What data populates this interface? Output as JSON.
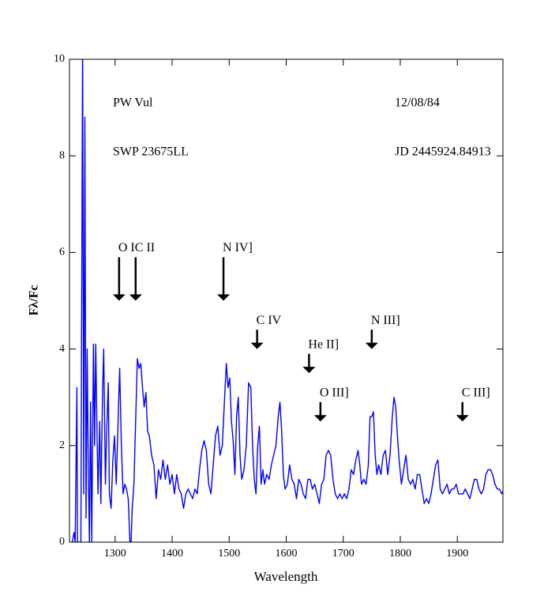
{
  "chart_data": {
    "type": "line",
    "xlabel": "Wavelength",
    "ylabel": "Fλ/Fc",
    "xlim": [
      1220,
      1980
    ],
    "ylim": [
      0,
      10
    ],
    "xticks": [
      1300,
      1400,
      1500,
      1600,
      1700,
      1800,
      1900
    ],
    "yticks": [
      0,
      2,
      4,
      6,
      8,
      10
    ],
    "texts": [
      "PW Vul",
      "SWP 23675LL",
      "12/08/84",
      "JD 2445924.84913"
    ],
    "annotations": [
      {
        "text": "O I",
        "xy": [
          1307,
          5.0
        ],
        "xytext": [
          1307,
          5.9
        ]
      },
      {
        "text": "C II",
        "xy": [
          1336,
          5.0
        ],
        "xytext": [
          1336,
          5.9
        ]
      },
      {
        "text": "N IV]",
        "xy": [
          1490,
          5.0
        ],
        "xytext": [
          1490,
          5.9
        ]
      },
      {
        "text": "C IV",
        "xy": [
          1549,
          4.0
        ],
        "xytext": [
          1549,
          4.4
        ]
      },
      {
        "text": "He II]",
        "xy": [
          1640,
          3.5
        ],
        "xytext": [
          1640,
          3.9
        ]
      },
      {
        "text": "N III]",
        "xy": [
          1750,
          4.0
        ],
        "xytext": [
          1750,
          4.4
        ]
      },
      {
        "text": "O III]",
        "xy": [
          1660,
          2.5
        ],
        "xytext": [
          1660,
          2.9
        ]
      },
      {
        "text": "C III]",
        "xy": [
          1909,
          2.5
        ],
        "xytext": [
          1909,
          2.9
        ]
      }
    ],
    "series": [
      {
        "color": "#0000ff",
        "x": [
          1225,
          1228,
          1230,
          1233,
          1234,
          1240,
          1243,
          1245,
          1247,
          1249,
          1251,
          1253,
          1255,
          1257,
          1259,
          1262,
          1264,
          1266,
          1268,
          1270,
          1273,
          1275,
          1278,
          1280,
          1283,
          1285,
          1288,
          1290,
          1293,
          1296,
          1299,
          1302,
          1305,
          1308,
          1311,
          1314,
          1317,
          1320,
          1323,
          1326,
          1328,
          1330,
          1333,
          1336,
          1339,
          1342,
          1345,
          1348,
          1351,
          1354,
          1357,
          1360,
          1364,
          1368,
          1372,
          1376,
          1380,
          1384,
          1388,
          1392,
          1396,
          1400,
          1404,
          1408,
          1412,
          1416,
          1420,
          1424,
          1428,
          1432,
          1436,
          1440,
          1444,
          1448,
          1452,
          1456,
          1460,
          1464,
          1468,
          1472,
          1476,
          1480,
          1484,
          1488,
          1492,
          1495,
          1498,
          1501,
          1504,
          1507,
          1510,
          1513,
          1516,
          1519,
          1522,
          1526,
          1530,
          1534,
          1538,
          1541,
          1544,
          1547,
          1550,
          1553,
          1556,
          1559,
          1562,
          1566,
          1570,
          1574,
          1578,
          1582,
          1586,
          1589,
          1592,
          1595,
          1598,
          1602,
          1606,
          1610,
          1614,
          1618,
          1622,
          1626,
          1630,
          1634,
          1638,
          1642,
          1646,
          1650,
          1654,
          1658,
          1662,
          1666,
          1670,
          1674,
          1678,
          1682,
          1686,
          1690,
          1694,
          1698,
          1702,
          1706,
          1710,
          1714,
          1718,
          1722,
          1726,
          1729,
          1732,
          1736,
          1740,
          1744,
          1747,
          1750,
          1753,
          1756,
          1759,
          1762,
          1766,
          1770,
          1774,
          1778,
          1782,
          1786,
          1789,
          1792,
          1795,
          1798,
          1802,
          1806,
          1810,
          1814,
          1818,
          1822,
          1826,
          1830,
          1834,
          1838,
          1842,
          1846,
          1850,
          1854,
          1858,
          1862,
          1866,
          1870,
          1874,
          1878,
          1882,
          1886,
          1890,
          1894,
          1898,
          1902,
          1906,
          1910,
          1914,
          1918,
          1922,
          1926,
          1930,
          1934,
          1938,
          1942,
          1946,
          1950,
          1954,
          1958,
          1962,
          1966,
          1970,
          1974,
          1978,
          1980
        ],
        "values": [
          0,
          0.2,
          0,
          3.2,
          0,
          0,
          10.5,
          1.0,
          8.8,
          0.5,
          4.0,
          1.5,
          0,
          2.9,
          0,
          4.1,
          2.0,
          4.1,
          2.5,
          1.0,
          2.5,
          0.8,
          3.1,
          4.0,
          1.2,
          2.2,
          3.3,
          1.0,
          0.7,
          1.7,
          2.2,
          1.2,
          2.4,
          3.6,
          2.0,
          1.0,
          1.2,
          1.1,
          0.9,
          0,
          0,
          0.7,
          1.2,
          2.5,
          3.8,
          3.6,
          3.7,
          3.2,
          2.8,
          3.1,
          2.3,
          2.2,
          1.8,
          1.6,
          0.9,
          1.5,
          1.3,
          1.7,
          1.3,
          1.6,
          1.2,
          1.4,
          1.0,
          1.4,
          1.1,
          1.0,
          0.7,
          1.0,
          1.1,
          1.0,
          0.9,
          1.1,
          1.0,
          1.5,
          1.9,
          2.1,
          1.9,
          1.2,
          1.0,
          1.6,
          2.2,
          2.4,
          1.8,
          2.0,
          3.0,
          3.7,
          3.2,
          3.4,
          2.5,
          2.1,
          1.4,
          2.6,
          3.0,
          1.8,
          1.3,
          1.5,
          2.0,
          3.3,
          3.2,
          2.0,
          1.3,
          1.0,
          2.0,
          2.4,
          1.2,
          1.5,
          1.2,
          1.4,
          1.3,
          1.6,
          1.8,
          2.0,
          2.6,
          2.9,
          2.3,
          1.4,
          1.1,
          1.2,
          1.6,
          1.3,
          1.2,
          0.9,
          1.3,
          1.2,
          1.0,
          0.9,
          1.3,
          1.3,
          1.1,
          1.2,
          1.0,
          0.8,
          1.2,
          1.3,
          1.8,
          1.9,
          1.8,
          1.3,
          1.0,
          0.9,
          1.0,
          0.9,
          1.0,
          0.9,
          1.1,
          1.5,
          1.4,
          1.7,
          1.9,
          1.6,
          1.2,
          1.3,
          1.2,
          1.6,
          2.6,
          2.6,
          2.7,
          1.8,
          1.4,
          1.6,
          1.4,
          1.8,
          1.9,
          1.4,
          1.8,
          2.6,
          3.0,
          2.8,
          2.2,
          1.7,
          1.2,
          1.5,
          1.8,
          1.3,
          1.2,
          1.3,
          1.1,
          1.4,
          1.4,
          1.1,
          0.8,
          0.9,
          0.8,
          1.0,
          1.3,
          1.6,
          1.7,
          1.1,
          1.0,
          1.1,
          1.2,
          1.0,
          1.1,
          1.1,
          1.2,
          1.0,
          1.0,
          1.0,
          1.1,
          1.0,
          0.9,
          1.1,
          1.3,
          1.3,
          1.1,
          1.0,
          1.1,
          1.4,
          1.5,
          1.5,
          1.4,
          1.2,
          1.1,
          1.1,
          1.0,
          1.05
        ]
      }
    ]
  }
}
